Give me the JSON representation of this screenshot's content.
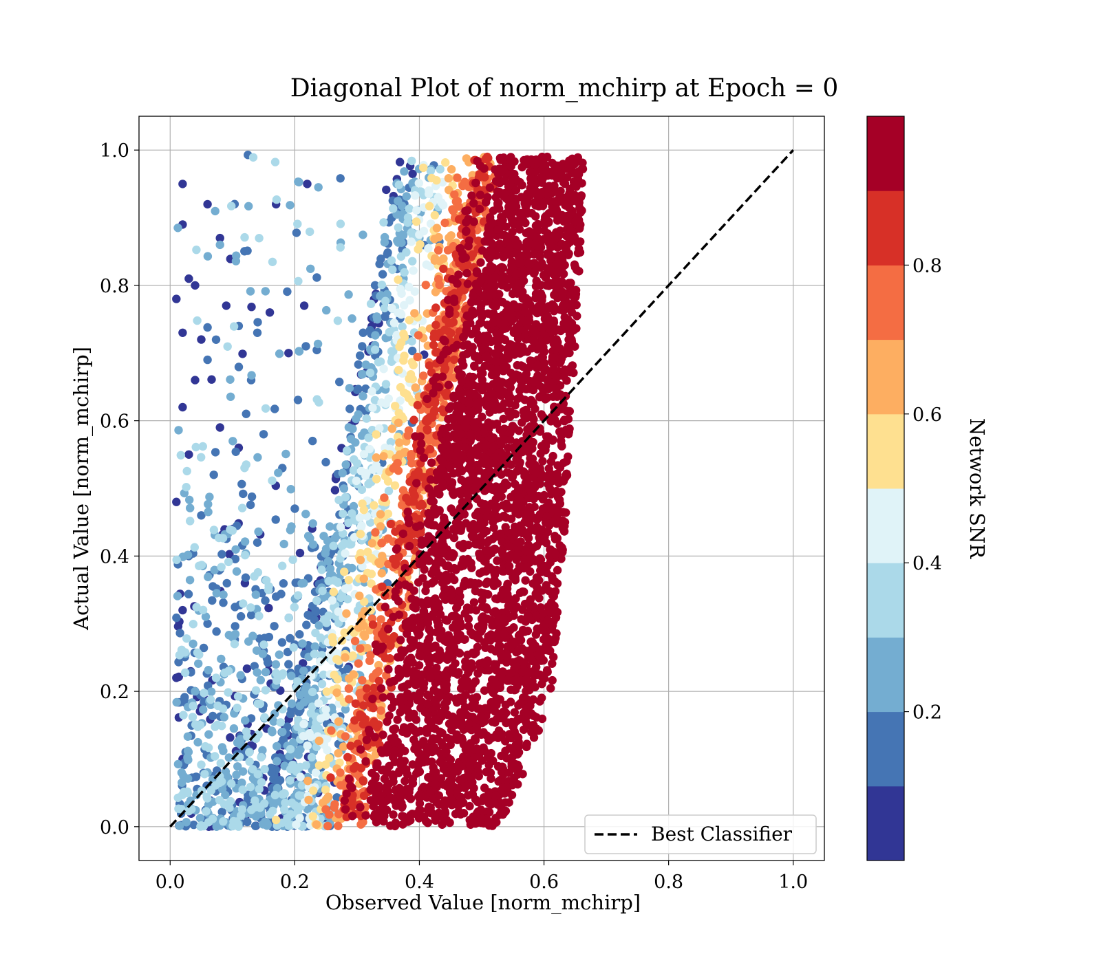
{
  "chart_data": {
    "type": "scatter",
    "title": "Diagonal Plot of norm_mchirp at Epoch = 0",
    "xlabel": "Observed Value [norm_mchirp]",
    "ylabel": "Actual Value [norm_mchirp]",
    "xlim": [
      -0.05,
      1.05
    ],
    "ylim": [
      -0.05,
      1.05
    ],
    "x_ticks": [
      "0.0",
      "0.2",
      "0.4",
      "0.6",
      "0.8",
      "1.0"
    ],
    "y_ticks": [
      "0.0",
      "0.2",
      "0.4",
      "0.6",
      "0.8",
      "1.0"
    ],
    "x_tick_values": [
      0.0,
      0.2,
      0.4,
      0.6,
      0.8,
      1.0
    ],
    "y_tick_values": [
      0.0,
      0.2,
      0.4,
      0.6,
      0.8,
      1.0
    ],
    "grid": true,
    "legend": {
      "placement": "lower-right",
      "entries": [
        "Best Classifier"
      ]
    },
    "reference_line": {
      "name": "Best Classifier",
      "style": "dashed",
      "color": "#000000",
      "x": [
        0.0,
        1.0
      ],
      "y": [
        0.0,
        1.0
      ]
    },
    "colorbar": {
      "label": "Network SNR",
      "range": [
        0.0,
        1.0
      ],
      "ticks": [
        "0.2",
        "0.4",
        "0.6",
        "0.8"
      ],
      "tick_values": [
        0.2,
        0.4,
        0.6,
        0.8
      ],
      "bins": 10,
      "colors": [
        "#313695",
        "#4575b4",
        "#74add1",
        "#abd9e9",
        "#e0f3f8",
        "#fee090",
        "#fdae61",
        "#f46d43",
        "#d73027",
        "#a50026"
      ]
    },
    "series": [
      {
        "description_key": "scatter",
        "points": [
          [
            0.02,
            0.95,
            0.05
          ],
          [
            0.06,
            0.92,
            0.05
          ],
          [
            0.02,
            0.89,
            0.05
          ],
          [
            0.08,
            0.87,
            0.05
          ],
          [
            0.17,
            0.92,
            0.05
          ],
          [
            0.22,
            0.95,
            0.05
          ],
          [
            0.03,
            0.81,
            0.05
          ],
          [
            0.04,
            0.8,
            0.05
          ],
          [
            0.01,
            0.78,
            0.05
          ],
          [
            0.09,
            0.77,
            0.05
          ],
          [
            0.11,
            0.74,
            0.1
          ],
          [
            0.02,
            0.73,
            0.05
          ],
          [
            0.05,
            0.72,
            0.05
          ],
          [
            0.14,
            0.73,
            0.1
          ],
          [
            0.16,
            0.76,
            0.05
          ],
          [
            0.19,
            0.7,
            0.05
          ],
          [
            0.06,
            0.69,
            0.1
          ],
          [
            0.04,
            0.66,
            0.05
          ],
          [
            0.13,
            0.66,
            0.1
          ],
          [
            0.02,
            0.62,
            0.05
          ],
          [
            0.08,
            0.59,
            0.05
          ],
          [
            0.11,
            0.56,
            0.05
          ],
          [
            0.15,
            0.58,
            0.1
          ],
          [
            0.03,
            0.55,
            0.05
          ],
          [
            0.07,
            0.52,
            0.15
          ],
          [
            0.18,
            0.53,
            0.1
          ],
          [
            0.01,
            0.48,
            0.05
          ],
          [
            0.05,
            0.46,
            0.1
          ],
          [
            0.1,
            0.44,
            0.05
          ],
          [
            0.14,
            0.42,
            0.15
          ],
          [
            0.2,
            0.47,
            0.1
          ],
          [
            0.03,
            0.4,
            0.15
          ],
          [
            0.08,
            0.38,
            0.1
          ],
          [
            0.12,
            0.36,
            0.05
          ],
          [
            0.17,
            0.34,
            0.1
          ],
          [
            0.02,
            0.32,
            0.05
          ],
          [
            0.06,
            0.3,
            0.15
          ],
          [
            0.1,
            0.28,
            0.2
          ],
          [
            0.15,
            0.26,
            0.1
          ],
          [
            0.19,
            0.24,
            0.15
          ],
          [
            0.01,
            0.22,
            0.05
          ],
          [
            0.04,
            0.2,
            0.2
          ],
          [
            0.09,
            0.18,
            0.15
          ],
          [
            0.13,
            0.16,
            0.1
          ],
          [
            0.18,
            0.14,
            0.2
          ],
          [
            0.22,
            0.12,
            0.25
          ],
          [
            0.02,
            0.1,
            0.05
          ],
          [
            0.06,
            0.08,
            0.2
          ],
          [
            0.11,
            0.06,
            0.15
          ],
          [
            0.16,
            0.04,
            0.25
          ],
          [
            0.21,
            0.03,
            0.3
          ],
          [
            0.25,
            0.06,
            0.35
          ],
          [
            0.27,
            0.02,
            0.35
          ],
          [
            0.17,
            0.01,
            0.55
          ]
        ]
      }
    ]
  }
}
